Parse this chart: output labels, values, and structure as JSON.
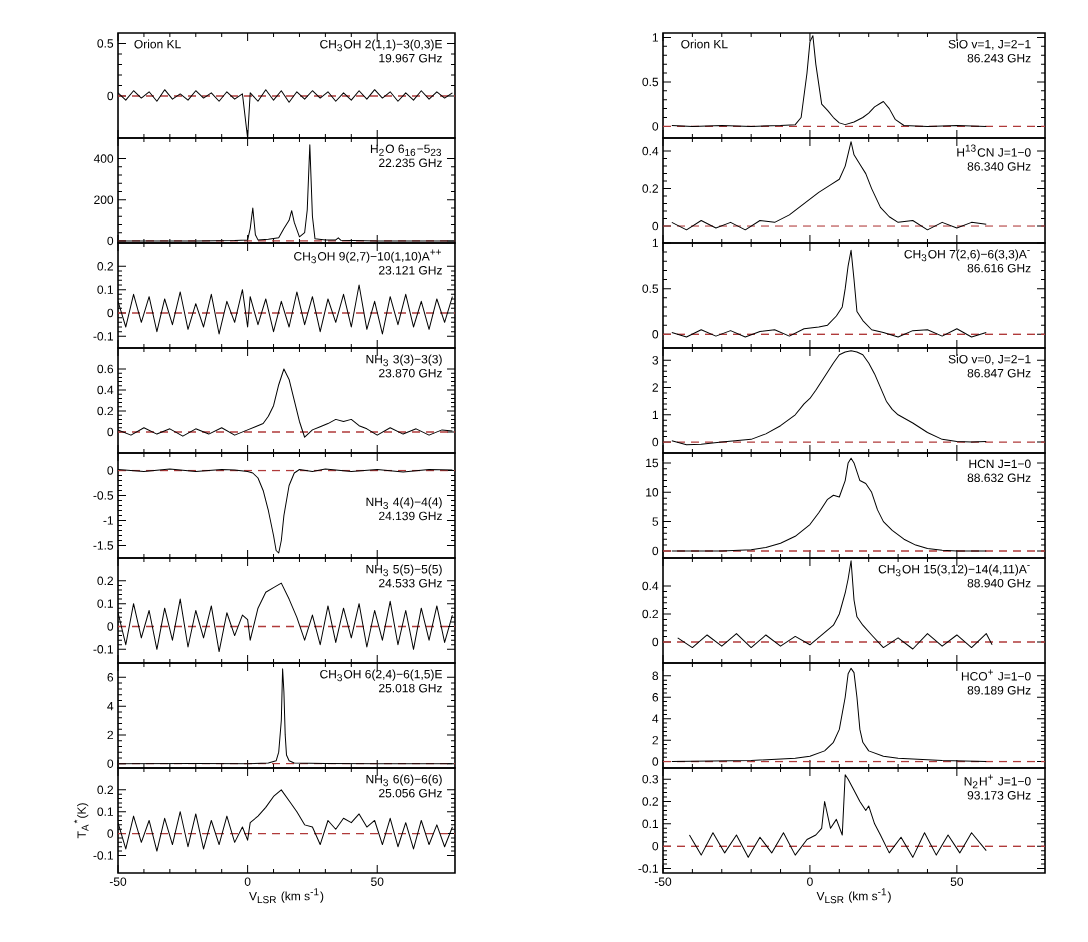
{
  "chart_data": [
    {
      "type": "line",
      "color": "#000000",
      "xlim": [
        -50,
        80
      ],
      "ylim": [
        -0.4,
        0.6
      ],
      "xticks": [
        -50,
        0,
        50
      ],
      "yticks": [
        0,
        0.5
      ],
      "tick_labels": "y",
      "annotations": [
        "Orion KL",
        "CH$_{3}$OH 2(1,1)−3(0,3)E",
        "19.967 GHz"
      ],
      "ref_lines": [
        {
          "axis": "y",
          "value": 0,
          "color": "#b03a3a",
          "line_style": "dashed"
        }
      ],
      "x": [
        -50,
        -47,
        -44,
        -41,
        -38,
        -35,
        -32,
        -29,
        -26,
        -23,
        -20,
        -17,
        -14,
        -11,
        -8,
        -5,
        -2,
        0,
        1,
        4,
        7,
        10,
        13,
        16,
        19,
        22,
        25,
        28,
        31,
        34,
        37,
        40,
        43,
        46,
        49,
        52,
        55,
        58,
        61,
        64,
        67,
        70,
        73,
        76,
        79
      ],
      "values": [
        0.03,
        -0.04,
        0.05,
        -0.02,
        0.04,
        -0.05,
        0.06,
        -0.03,
        0.02,
        -0.04,
        0.05,
        -0.02,
        0.03,
        -0.05,
        0.04,
        -0.03,
        0.02,
        -0.4,
        0.03,
        -0.05,
        0.06,
        -0.04,
        0.05,
        -0.06,
        0.04,
        -0.03,
        0.05,
        -0.02,
        0.04,
        -0.05,
        0.03,
        -0.04,
        0.05,
        -0.03,
        0.06,
        -0.02,
        0.04,
        -0.05,
        0.03,
        -0.04,
        0.05,
        -0.03,
        0.04,
        -0.02,
        0.03
      ]
    },
    {
      "type": "line",
      "color": "#000000",
      "xlim": [
        -50,
        80
      ],
      "ylim": [
        -10,
        500
      ],
      "xticks": [
        -50,
        0,
        50
      ],
      "yticks": [
        0,
        200,
        400
      ],
      "tick_labels": "y",
      "annotations": [
        "H$_{2}$O 6$_{16}$−5$_{23}$",
        "22.235 GHz"
      ],
      "ref_lines": [
        {
          "axis": "y",
          "value": 0,
          "color": "#b03a3a",
          "line_style": "dashed"
        }
      ],
      "x": [
        -50,
        -20,
        -5,
        0,
        1,
        2,
        3,
        4,
        8,
        12,
        14,
        16,
        17,
        18,
        20,
        22,
        23,
        24,
        25,
        26,
        30,
        34,
        35,
        36,
        50,
        80
      ],
      "values": [
        0,
        0,
        2,
        5,
        60,
        160,
        30,
        5,
        8,
        15,
        60,
        100,
        147,
        90,
        20,
        40,
        150,
        467,
        120,
        10,
        5,
        5,
        15,
        3,
        0,
        0
      ]
    },
    {
      "type": "line",
      "color": "#000000",
      "xlim": [
        -50,
        80
      ],
      "ylim": [
        -0.15,
        0.3
      ],
      "xticks": [
        -50,
        0,
        50
      ],
      "yticks": [
        -0.1,
        0,
        0.1,
        0.2
      ],
      "tick_labels": "y",
      "annotations": [
        "CH$_{3}$OH 9(2,7)−10(1,10)A$^{++}$",
        "23.121 GHz"
      ],
      "ref_lines": [
        {
          "axis": "y",
          "value": 0,
          "color": "#b03a3a",
          "line_style": "dashed"
        }
      ],
      "x": [
        -50,
        -47,
        -44,
        -41,
        -38,
        -35,
        -32,
        -29,
        -26,
        -23,
        -20,
        -17,
        -14,
        -11,
        -8,
        -5,
        -2,
        0,
        1,
        4,
        7,
        10,
        13,
        16,
        19,
        22,
        25,
        28,
        31,
        34,
        37,
        40,
        43,
        46,
        49,
        52,
        55,
        58,
        61,
        64,
        67,
        70,
        73,
        76,
        79
      ],
      "values": [
        0.05,
        -0.06,
        0.08,
        -0.04,
        0.07,
        -0.08,
        0.06,
        -0.05,
        0.09,
        -0.07,
        0.04,
        -0.06,
        0.08,
        -0.09,
        0.05,
        -0.04,
        0.1,
        -0.06,
        0.07,
        -0.05,
        0.06,
        -0.08,
        0.05,
        -0.06,
        0.09,
        -0.05,
        0.07,
        -0.08,
        0.06,
        -0.04,
        0.08,
        -0.06,
        0.12,
        -0.07,
        0.05,
        -0.09,
        0.07,
        -0.05,
        0.08,
        -0.06,
        0.05,
        -0.07,
        0.06,
        -0.04,
        0.07
      ]
    },
    {
      "type": "line",
      "color": "#000000",
      "xlim": [
        -50,
        80
      ],
      "ylim": [
        -0.2,
        0.8
      ],
      "xticks": [
        -50,
        0,
        50
      ],
      "yticks": [
        0,
        0.2,
        0.4,
        0.6
      ],
      "tick_labels": "y",
      "annotations": [
        "NH$_{3}$ 3(3)−3(3)",
        "23.870 GHz"
      ],
      "ref_lines": [
        {
          "axis": "y",
          "value": 0,
          "color": "#b03a3a",
          "line_style": "dashed"
        }
      ],
      "x": [
        -50,
        -45,
        -40,
        -35,
        -30,
        -25,
        -20,
        -15,
        -10,
        -5,
        0,
        3,
        6,
        8,
        10,
        12,
        14,
        16,
        18,
        20,
        22,
        25,
        28,
        31,
        34,
        37,
        40,
        43,
        46,
        50,
        55,
        60,
        65,
        70,
        75,
        79
      ],
      "values": [
        0.02,
        -0.03,
        0.04,
        -0.02,
        0.03,
        -0.04,
        0.03,
        -0.02,
        0.04,
        -0.03,
        0.02,
        0.05,
        0.08,
        0.15,
        0.25,
        0.45,
        0.6,
        0.5,
        0.3,
        0.1,
        -0.05,
        0.02,
        0.05,
        0.08,
        0.12,
        0.1,
        0.12,
        0.06,
        0.03,
        -0.03,
        0.04,
        -0.02,
        0.03,
        -0.03,
        0.02,
        0.01
      ]
    },
    {
      "type": "line",
      "color": "#000000",
      "xlim": [
        -50,
        80
      ],
      "ylim": [
        -1.75,
        0.35
      ],
      "xticks": [
        -50,
        0,
        50
      ],
      "yticks": [
        -1.5,
        -1,
        -0.5,
        0
      ],
      "tick_labels": "y",
      "annotations": [
        "NH$_{3}$ 4(4)−4(4)",
        "24.139 GHz"
      ],
      "ref_lines": [
        {
          "axis": "y",
          "value": 0,
          "color": "#b03a3a",
          "line_style": "dashed"
        }
      ],
      "x": [
        -50,
        -40,
        -30,
        -20,
        -10,
        -5,
        0,
        2,
        4,
        6,
        8,
        10,
        11,
        12,
        13,
        14,
        16,
        18,
        20,
        25,
        30,
        40,
        50,
        60,
        70,
        79
      ],
      "values": [
        0.02,
        -0.02,
        0.03,
        -0.02,
        0.02,
        0.01,
        -0.02,
        -0.05,
        -0.15,
        -0.4,
        -0.8,
        -1.3,
        -1.6,
        -1.65,
        -1.4,
        -0.9,
        -0.3,
        -0.05,
        0.02,
        -0.02,
        0.03,
        -0.02,
        0.02,
        -0.03,
        0.02,
        0.01
      ]
    },
    {
      "type": "line",
      "color": "#000000",
      "xlim": [
        -50,
        80
      ],
      "ylim": [
        -0.16,
        0.3
      ],
      "xticks": [
        -50,
        0,
        50
      ],
      "yticks": [
        -0.1,
        0,
        0.1,
        0.2
      ],
      "tick_labels": "y",
      "annotations": [
        "NH$_{3}$ 5(5)−5(5)",
        "24.533 GHz"
      ],
      "ref_lines": [
        {
          "axis": "y",
          "value": 0,
          "color": "#b03a3a",
          "line_style": "dashed"
        }
      ],
      "x": [
        -50,
        -47,
        -44,
        -41,
        -38,
        -35,
        -32,
        -29,
        -26,
        -23,
        -20,
        -17,
        -14,
        -11,
        -8,
        -5,
        -2,
        0,
        1,
        4,
        7,
        10,
        13,
        16,
        19,
        22,
        25,
        28,
        31,
        34,
        37,
        40,
        43,
        46,
        49,
        52,
        55,
        58,
        61,
        64,
        67,
        70,
        73,
        76,
        79
      ],
      "values": [
        0.06,
        -0.08,
        0.1,
        -0.05,
        0.07,
        -0.1,
        0.08,
        -0.06,
        0.12,
        -0.09,
        0.07,
        -0.05,
        0.09,
        -0.11,
        0.06,
        -0.04,
        0.05,
        0.03,
        -0.06,
        0.08,
        0.15,
        0.17,
        0.19,
        0.12,
        0.04,
        -0.06,
        0.05,
        -0.08,
        0.09,
        -0.07,
        0.08,
        -0.05,
        0.1,
        -0.09,
        0.07,
        -0.06,
        0.11,
        -0.08,
        0.07,
        -0.1,
        0.08,
        -0.06,
        0.09,
        -0.07,
        0.05
      ]
    },
    {
      "type": "line",
      "color": "#000000",
      "xlim": [
        -50,
        80
      ],
      "ylim": [
        -0.3,
        7
      ],
      "xticks": [
        -50,
        0,
        50
      ],
      "yticks": [
        0,
        2,
        4,
        6
      ],
      "tick_labels": "y",
      "annotations": [
        "CH$_{3}$OH 6(2,4)−6(1,5)E",
        "25.018 GHz"
      ],
      "ref_lines": [
        {
          "axis": "y",
          "value": 0,
          "color": "#b03a3a",
          "line_style": "dashed"
        }
      ],
      "x": [
        -50,
        -20,
        0,
        8,
        11,
        12,
        13,
        13.5,
        14,
        14.5,
        15,
        16,
        18,
        30,
        50,
        79
      ],
      "values": [
        0,
        0.02,
        0,
        0.05,
        0.2,
        0.8,
        3,
        6.6,
        5,
        2,
        0.6,
        0.2,
        0.05,
        0.01,
        0,
        0
      ]
    },
    {
      "type": "line",
      "color": "#000000",
      "xlim": [
        -50,
        80
      ],
      "ylim": [
        -0.18,
        0.3
      ],
      "xticks": [
        -50,
        0,
        50
      ],
      "yticks": [
        -0.1,
        0,
        0.1,
        0.2
      ],
      "xlabel": "V$_{LSR}$ (km s$^{-1}$)",
      "ylabel": "T$_{A}$$^{*}$(K)",
      "annotations": [
        "NH$_{3}$ 6(6)−6(6)",
        "25.056 GHz"
      ],
      "ref_lines": [
        {
          "axis": "y",
          "value": 0,
          "color": "#b03a3a",
          "line_style": "dashed"
        }
      ],
      "x": [
        -50,
        -47,
        -44,
        -41,
        -38,
        -35,
        -32,
        -29,
        -26,
        -23,
        -20,
        -17,
        -14,
        -11,
        -8,
        -5,
        -2,
        0,
        1,
        4,
        7,
        10,
        13,
        16,
        19,
        22,
        25,
        28,
        31,
        34,
        37,
        40,
        43,
        46,
        49,
        52,
        55,
        58,
        61,
        64,
        67,
        70,
        73,
        76,
        79
      ],
      "values": [
        0.05,
        -0.07,
        0.08,
        -0.04,
        0.06,
        -0.08,
        0.07,
        -0.05,
        0.1,
        -0.06,
        0.09,
        -0.07,
        0.06,
        -0.05,
        0.08,
        -0.04,
        0.03,
        -0.03,
        0.05,
        0.08,
        0.12,
        0.17,
        0.2,
        0.15,
        0.1,
        0.04,
        0.03,
        -0.05,
        0.06,
        0.02,
        0.07,
        0.05,
        0.09,
        0.03,
        0.06,
        -0.05,
        0.07,
        -0.06,
        0.05,
        -0.07,
        0.06,
        -0.05,
        0.04,
        -0.06,
        0.03
      ]
    },
    {
      "type": "line",
      "color": "#000000",
      "xlim": [
        -50,
        80
      ],
      "ylim": [
        -0.13,
        1.05
      ],
      "xticks": [
        -50,
        0,
        50
      ],
      "yticks": [
        0,
        0.5,
        1
      ],
      "tick_labels": "y",
      "annotations": [
        "Orion KL",
        "SiO v=1, J=2−1",
        "86.243 GHz"
      ],
      "ref_lines": [
        {
          "axis": "y",
          "value": 0,
          "color": "#b03a3a",
          "line_style": "dashed"
        }
      ],
      "x": [
        -47,
        -40,
        -30,
        -20,
        -10,
        -5,
        -3,
        -1,
        0,
        1,
        2,
        4,
        6,
        8,
        10,
        12,
        15,
        18,
        20,
        22,
        24,
        25,
        27,
        29,
        32,
        40,
        50,
        60
      ],
      "values": [
        0.01,
        0,
        0.01,
        0,
        0.01,
        0.02,
        0.1,
        0.6,
        0.95,
        1.02,
        0.7,
        0.25,
        0.18,
        0.1,
        0.04,
        0.02,
        0.05,
        0.1,
        0.15,
        0.22,
        0.26,
        0.28,
        0.2,
        0.08,
        0.01,
        0,
        0.01,
        0
      ]
    },
    {
      "type": "line",
      "color": "#000000",
      "xlim": [
        -50,
        80
      ],
      "ylim": [
        -0.09,
        0.47
      ],
      "xticks": [
        -50,
        0,
        50
      ],
      "yticks": [
        0,
        0.2,
        0.4
      ],
      "tick_labels": "y",
      "annotations": [
        "H$^{13}$CN J=1−0",
        "86.340 GHz"
      ],
      "ref_lines": [
        {
          "axis": "y",
          "value": 0,
          "color": "#b03a3a",
          "line_style": "dashed"
        }
      ],
      "x": [
        -47,
        -42,
        -37,
        -32,
        -27,
        -22,
        -17,
        -12,
        -7,
        -2,
        3,
        7,
        10,
        12,
        14,
        15,
        17,
        19,
        21,
        24,
        27,
        30,
        35,
        40,
        45,
        50,
        55,
        60
      ],
      "values": [
        0.02,
        -0.02,
        0.03,
        -0.01,
        0.02,
        -0.02,
        0.03,
        0.02,
        0.06,
        0.12,
        0.18,
        0.22,
        0.25,
        0.32,
        0.45,
        0.38,
        0.33,
        0.28,
        0.2,
        0.1,
        0.05,
        0.02,
        0.03,
        -0.02,
        0.02,
        -0.01,
        0.02,
        0.01
      ]
    },
    {
      "type": "line",
      "color": "#000000",
      "xlim": [
        -50,
        80
      ],
      "ylim": [
        -0.15,
        1
      ],
      "xticks": [
        -50,
        0,
        50
      ],
      "yticks": [
        0,
        0.5,
        1
      ],
      "tick_labels": "y",
      "annotations": [
        "CH$_{3}$OH 7(2,6)−6(3,3)A$^{-}$",
        "86.616 GHz"
      ],
      "ref_lines": [
        {
          "axis": "y",
          "value": 0,
          "color": "#b03a3a",
          "line_style": "dashed"
        }
      ],
      "x": [
        -47,
        -42,
        -37,
        -32,
        -27,
        -22,
        -17,
        -12,
        -7,
        -2,
        3,
        6,
        9,
        11,
        12,
        13,
        14,
        15,
        16,
        18,
        21,
        25,
        30,
        35,
        40,
        45,
        50,
        55,
        60
      ],
      "values": [
        0.02,
        -0.03,
        0.05,
        -0.02,
        0.04,
        -0.03,
        0.03,
        0.05,
        -0.02,
        0.06,
        0.08,
        0.1,
        0.2,
        0.3,
        0.5,
        0.75,
        0.92,
        0.6,
        0.25,
        0.15,
        0.05,
        0.02,
        -0.03,
        0.04,
        0.05,
        -0.02,
        0.06,
        -0.03,
        0.02
      ]
    },
    {
      "type": "line",
      "color": "#000000",
      "xlim": [
        -50,
        80
      ],
      "ylim": [
        -0.4,
        3.45
      ],
      "xticks": [
        -50,
        0,
        50
      ],
      "yticks": [
        0,
        1,
        2,
        3
      ],
      "tick_labels": "y",
      "annotations": [
        "SiO v=0, J=2−1",
        "86.847 GHz"
      ],
      "ref_lines": [
        {
          "axis": "y",
          "value": 0,
          "color": "#b03a3a",
          "line_style": "dashed"
        }
      ],
      "x": [
        -47,
        -42,
        -37,
        -30,
        -25,
        -20,
        -15,
        -10,
        -5,
        -2,
        0,
        2,
        5,
        8,
        10,
        12,
        14,
        16,
        18,
        20,
        22,
        24,
        26,
        28,
        30,
        35,
        40,
        45,
        50,
        55,
        60
      ],
      "values": [
        0.05,
        -0.1,
        -0.08,
        0,
        0.05,
        0.1,
        0.3,
        0.6,
        1.0,
        1.4,
        1.6,
        1.9,
        2.4,
        2.9,
        3.2,
        3.3,
        3.35,
        3.3,
        3.2,
        2.9,
        2.5,
        2.0,
        1.5,
        1.2,
        1.0,
        0.7,
        0.35,
        0.1,
        0.02,
        0,
        0.02
      ]
    },
    {
      "type": "line",
      "color": "#000000",
      "xlim": [
        -50,
        80
      ],
      "ylim": [
        -1.2,
        16.7
      ],
      "xticks": [
        -50,
        0,
        50
      ],
      "yticks": [
        0,
        5,
        10,
        15
      ],
      "tick_labels": "y",
      "annotations": [
        "HCN J=1−0",
        "88.632 GHz"
      ],
      "ref_lines": [
        {
          "axis": "y",
          "value": 0,
          "color": "#b03a3a",
          "line_style": "dashed"
        }
      ],
      "x": [
        -47,
        -30,
        -20,
        -15,
        -10,
        -5,
        0,
        3,
        6,
        8,
        10,
        12,
        13,
        14,
        15,
        17,
        19,
        21,
        23,
        25,
        28,
        32,
        36,
        40,
        45,
        50,
        60
      ],
      "values": [
        0,
        0,
        0.2,
        0.6,
        1.3,
        2.5,
        4.5,
        6.5,
        8.8,
        9.5,
        9.2,
        12,
        15,
        15.8,
        15,
        12,
        11.5,
        10,
        7,
        5,
        3.5,
        2,
        1,
        0.4,
        0.1,
        0,
        0
      ]
    },
    {
      "type": "line",
      "color": "#000000",
      "xlim": [
        -50,
        80
      ],
      "ylim": [
        -0.15,
        0.6
      ],
      "xticks": [
        -50,
        0,
        50
      ],
      "yticks": [
        0,
        0.2,
        0.4
      ],
      "tick_labels": "y",
      "annotations": [
        "CH$_{3}$OH 15(3,12)−14(4,11)A$^{-}$",
        "88.940 GHz"
      ],
      "ref_lines": [
        {
          "axis": "y",
          "value": 0,
          "color": "#b03a3a",
          "line_style": "dashed"
        }
      ],
      "x": [
        -45,
        -40,
        -35,
        -30,
        -25,
        -20,
        -15,
        -10,
        -5,
        0,
        4,
        8,
        10,
        12,
        13,
        14,
        15,
        16,
        18,
        21,
        25,
        30,
        35,
        40,
        45,
        50,
        55,
        60,
        62
      ],
      "values": [
        0.03,
        -0.04,
        0.05,
        -0.03,
        0.06,
        -0.04,
        0.05,
        -0.03,
        0.04,
        -0.02,
        0.05,
        0.12,
        0.2,
        0.35,
        0.45,
        0.58,
        0.3,
        0.18,
        0.12,
        0.05,
        -0.04,
        0.03,
        -0.05,
        0.06,
        -0.03,
        0.05,
        -0.04,
        0.06,
        -0.02
      ]
    },
    {
      "type": "line",
      "color": "#000000",
      "xlim": [
        -50,
        80
      ],
      "ylim": [
        -0.6,
        9.2
      ],
      "xticks": [
        -50,
        0,
        50
      ],
      "yticks": [
        0,
        2,
        4,
        6,
        8
      ],
      "tick_labels": "y",
      "annotations": [
        "HCO$^{+}$ J=1−0",
        "89.189 GHz"
      ],
      "ref_lines": [
        {
          "axis": "y",
          "value": 0,
          "color": "#b03a3a",
          "line_style": "dashed"
        }
      ],
      "x": [
        -47,
        -20,
        -5,
        0,
        5,
        8,
        10,
        12,
        13,
        14,
        15,
        16,
        17,
        18,
        20,
        25,
        30,
        45,
        60
      ],
      "values": [
        0,
        0.1,
        0.3,
        0.5,
        1.0,
        1.8,
        3,
        6,
        8.2,
        8.7,
        8.3,
        6,
        3,
        1.8,
        1,
        0.5,
        0.3,
        0.1,
        0
      ]
    },
    {
      "type": "line",
      "color": "#000000",
      "xlim": [
        -50,
        80
      ],
      "ylim": [
        -0.12,
        0.35
      ],
      "xticks": [
        -50,
        0,
        50
      ],
      "yticks": [
        -0.1,
        0,
        0.1,
        0.2,
        0.3
      ],
      "xlabel": "V$_{LSR}$ (km s$^{-1}$)",
      "annotations": [
        "N$_{2}$H$^{+}$ J=1−0",
        "93.173 GHz"
      ],
      "ref_lines": [
        {
          "axis": "y",
          "value": 0,
          "color": "#b03a3a",
          "line_style": "dashed"
        }
      ],
      "x": [
        -41,
        -37,
        -33,
        -29,
        -25,
        -21,
        -17,
        -13,
        -9,
        -5,
        -1,
        2,
        4,
        5,
        7,
        9,
        11,
        12,
        13,
        15,
        17,
        19,
        20,
        22,
        24,
        27,
        31,
        35,
        39,
        43,
        47,
        51,
        55,
        60
      ],
      "values": [
        0.05,
        -0.04,
        0.06,
        -0.03,
        0.05,
        -0.05,
        0.04,
        -0.03,
        0.06,
        -0.04,
        0.03,
        0.05,
        0.08,
        0.2,
        0.08,
        0.12,
        0.05,
        0.32,
        0.3,
        0.25,
        0.2,
        0.16,
        0.18,
        0.1,
        0.05,
        -0.03,
        0.04,
        -0.05,
        0.06,
        -0.04,
        0.05,
        -0.03,
        0.06,
        -0.02
      ]
    }
  ]
}
